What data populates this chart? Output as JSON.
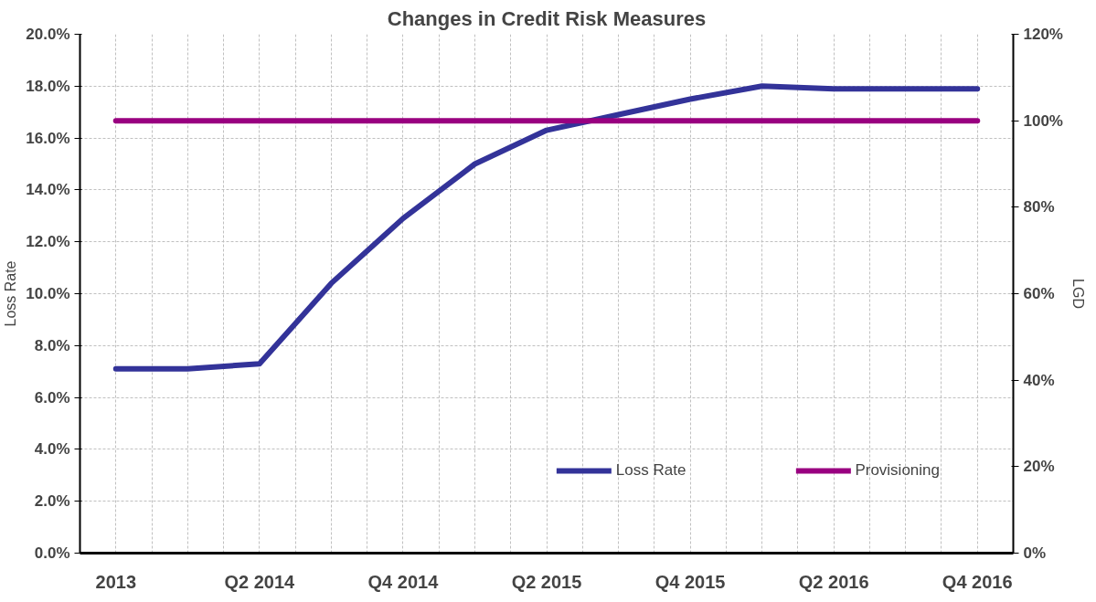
{
  "chart_data": {
    "type": "line",
    "title": "Changes in Credit Risk Measures",
    "ylabel": "Loss Rate",
    "y2label": "LGD",
    "categories": [
      "2013",
      null,
      "Q2 2014",
      null,
      "Q4 2014",
      null,
      "Q2 2015",
      null,
      "Q4 2015",
      null,
      "Q2 2016",
      null,
      "Q4 2016"
    ],
    "series": [
      {
        "name": "Loss Rate",
        "color": "#333399",
        "values": [
          7.1,
          7.1,
          7.3,
          10.4,
          12.9,
          15.0,
          16.3,
          16.9,
          17.5,
          18.0,
          17.9,
          17.9,
          17.9
        ]
      },
      {
        "name": "Provisioning",
        "color": "#990080",
        "axis": "y2",
        "values": [
          100,
          100,
          100,
          100,
          100,
          100,
          100,
          100,
          100,
          100,
          100,
          100,
          100
        ]
      }
    ],
    "ylim": [
      0,
      20
    ],
    "yticks": [
      {
        "value": 0,
        "label": "0.0%"
      },
      {
        "value": 2,
        "label": "2.0%"
      },
      {
        "value": 4,
        "label": "4.0%"
      },
      {
        "value": 6,
        "label": "6.0%"
      },
      {
        "value": 8,
        "label": "8.0%"
      },
      {
        "value": 10,
        "label": "10.0%"
      },
      {
        "value": 12,
        "label": "12.0%"
      },
      {
        "value": 14,
        "label": "14.0%"
      },
      {
        "value": 16,
        "label": "16.0%"
      },
      {
        "value": 18,
        "label": "18.0%"
      },
      {
        "value": 20,
        "label": "20.0%"
      }
    ],
    "y2lim": [
      0,
      120
    ],
    "y2ticks": [
      {
        "value": 0,
        "label": "0%"
      },
      {
        "value": 20,
        "label": "20%"
      },
      {
        "value": 40,
        "label": "40%"
      },
      {
        "value": 60,
        "label": "60%"
      },
      {
        "value": 80,
        "label": "80%"
      },
      {
        "value": 100,
        "label": "100%"
      },
      {
        "value": 120,
        "label": "120%"
      }
    ],
    "grid": true,
    "legend": "bottom right",
    "marker": "none",
    "line_style": "solid"
  }
}
